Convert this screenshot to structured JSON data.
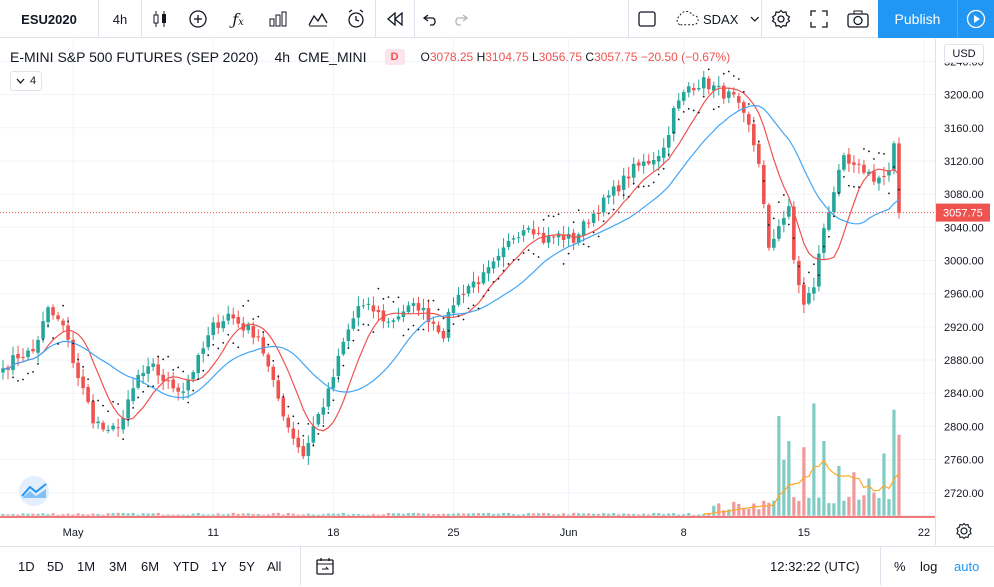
{
  "toolbar": {
    "symbol": "ESU2020",
    "interval": "4h",
    "compare_symbol": "SDAX",
    "publish_label": "Publish",
    "icons": [
      "candles-icon",
      "add-indicator-icon",
      "fx-icon",
      "bars-compare-icon",
      "templates-icon",
      "alert-icon",
      "replay-icon",
      "undo-icon",
      "redo-icon",
      "layout-icon",
      "cloud-icon",
      "chevron-down-icon",
      "settings-icon",
      "fullscreen-icon",
      "camera-icon",
      "play-icon"
    ]
  },
  "legend": {
    "title": "E-MINI S&P 500 FUTURES (SEP 2020)",
    "interval": "4h",
    "exchange": "CME_MINI",
    "badge": "D",
    "o_label": "O",
    "o_value": "3078.25",
    "h_label": "H",
    "h_value": "3104.75",
    "l_label": "L",
    "l_value": "3056.75",
    "c_label": "C",
    "c_value": "3057.75",
    "change": "−20.50 (−0.67%)",
    "collapse_label": "4",
    "currency": "USD"
  },
  "chart_data": {
    "type": "candlestick",
    "title": "E-MINI S&P 500 FUTURES (SEP 2020)",
    "last_price": 3057.75,
    "last_price_label": "3057.75",
    "ylim": [
      2692,
      3267
    ],
    "y_ticks": [
      2720,
      2760,
      2800,
      2840,
      2880,
      2920,
      2960,
      3000,
      3040,
      3080,
      3120,
      3160,
      3200,
      3240
    ],
    "y_tick_labels": [
      "2720.00",
      "2760.00",
      "2800.00",
      "2840.00",
      "2880.00",
      "2920.00",
      "2960.00",
      "3000.00",
      "3040.00",
      "3080.00",
      "3120.00",
      "3160.00",
      "3200.00",
      "3240.00"
    ],
    "x_ticks": [
      {
        "label": "May",
        "index": 14
      },
      {
        "label": "11",
        "index": 42
      },
      {
        "label": "18",
        "index": 66
      },
      {
        "label": "25",
        "index": 90
      },
      {
        "label": "Jun",
        "index": 113
      },
      {
        "label": "8",
        "index": 136
      },
      {
        "label": "15",
        "index": 160
      },
      {
        "label": "22",
        "index": 184
      }
    ],
    "candle_count": 180,
    "keypoints": [
      [
        0,
        2870
      ],
      [
        3,
        2885
      ],
      [
        6,
        2890
      ],
      [
        9,
        2940
      ],
      [
        12,
        2920
      ],
      [
        15,
        2860
      ],
      [
        18,
        2810
      ],
      [
        21,
        2790
      ],
      [
        24,
        2810
      ],
      [
        27,
        2860
      ],
      [
        30,
        2870
      ],
      [
        33,
        2850
      ],
      [
        36,
        2845
      ],
      [
        39,
        2880
      ],
      [
        42,
        2920
      ],
      [
        45,
        2935
      ],
      [
        48,
        2920
      ],
      [
        51,
        2910
      ],
      [
        54,
        2850
      ],
      [
        57,
        2800
      ],
      [
        60,
        2765
      ],
      [
        62,
        2800
      ],
      [
        65,
        2840
      ],
      [
        68,
        2900
      ],
      [
        71,
        2945
      ],
      [
        74,
        2940
      ],
      [
        77,
        2925
      ],
      [
        80,
        2940
      ],
      [
        83,
        2945
      ],
      [
        86,
        2925
      ],
      [
        88,
        2912
      ],
      [
        90,
        2950
      ],
      [
        93,
        2970
      ],
      [
        96,
        2980
      ],
      [
        99,
        3000
      ],
      [
        102,
        3030
      ],
      [
        105,
        3045
      ],
      [
        108,
        3025
      ],
      [
        111,
        3030
      ],
      [
        114,
        3025
      ],
      [
        117,
        3050
      ],
      [
        120,
        3070
      ],
      [
        123,
        3090
      ],
      [
        126,
        3110
      ],
      [
        129,
        3120
      ],
      [
        132,
        3135
      ],
      [
        134,
        3180
      ],
      [
        137,
        3210
      ],
      [
        140,
        3215
      ],
      [
        143,
        3205
      ],
      [
        146,
        3195
      ],
      [
        149,
        3160
      ],
      [
        151,
        3120
      ],
      [
        153,
        3010
      ],
      [
        155,
        3045
      ],
      [
        157,
        3060
      ],
      [
        158,
        3000
      ],
      [
        160,
        2945
      ],
      [
        162,
        2970
      ],
      [
        164,
        3040
      ],
      [
        166,
        3085
      ],
      [
        168,
        3120
      ],
      [
        170,
        3110
      ],
      [
        172,
        3110
      ],
      [
        174,
        3100
      ],
      [
        176,
        3100
      ],
      [
        177,
        3105
      ],
      [
        178,
        3135
      ],
      [
        179,
        3057.75
      ]
    ],
    "volume_spikes": [
      [
        155,
        0.8
      ],
      [
        156,
        0.45
      ],
      [
        157,
        0.6
      ],
      [
        160,
        0.55
      ],
      [
        162,
        0.9
      ],
      [
        164,
        0.6
      ],
      [
        167,
        0.4
      ],
      [
        170,
        0.35
      ],
      [
        173,
        0.3
      ],
      [
        176,
        0.5
      ],
      [
        178,
        0.85
      ],
      [
        179,
        0.65
      ]
    ],
    "series": [
      {
        "name": "",
        "type": "candles",
        "up_color": "#26a69a",
        "down_color": "#ef5350"
      },
      {
        "name": "",
        "type": "line",
        "color": "#ef5350",
        "period": 9
      },
      {
        "name": "",
        "type": "line",
        "color": "#42a5f5",
        "period": 20
      },
      {
        "name": "",
        "type": "dots",
        "color": "#131722"
      },
      {
        "name": "",
        "type": "volume",
        "up_color": "#80cbc4",
        "down_color": "#ef9a9a"
      },
      {
        "name": "",
        "type": "line",
        "color": "#ffa726"
      }
    ],
    "grid": true,
    "legend_position": "top-left"
  },
  "bottom": {
    "ranges": [
      "1D",
      "5D",
      "1M",
      "3M",
      "6M",
      "YTD",
      "1Y",
      "5Y",
      "All"
    ],
    "time": "12:32:22 (UTC)",
    "percent_label": "%",
    "log_label": "log",
    "auto_label": "auto"
  }
}
